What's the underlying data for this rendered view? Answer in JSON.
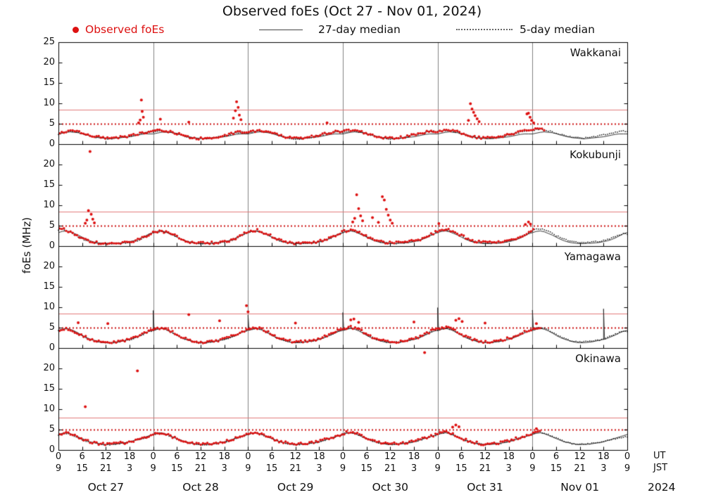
{
  "title": "Observed foEs (Oct 27 - Nov 01, 2024)",
  "legend": {
    "observed": "Observed foEs",
    "median27": "27-day median",
    "median5": "5-day median"
  },
  "y_axis_label": "foEs (MHz)",
  "x_axis": {
    "tick_hours": [
      0,
      6,
      12,
      18,
      24,
      30,
      36,
      42,
      48,
      54,
      60,
      66,
      72,
      78,
      84,
      90,
      96,
      102,
      108,
      114,
      120,
      126,
      132,
      138,
      144
    ],
    "ut_row": [
      "0",
      "6",
      "12",
      "18",
      "0",
      "6",
      "12",
      "18",
      "0",
      "6",
      "12",
      "18",
      "0",
      "6",
      "12",
      "18",
      "0",
      "6",
      "12",
      "18",
      "0",
      "6",
      "12",
      "18",
      "0"
    ],
    "jst_row": [
      "9",
      "15",
      "21",
      "3",
      "9",
      "15",
      "21",
      "3",
      "9",
      "15",
      "21",
      "3",
      "9",
      "15",
      "21",
      "3",
      "9",
      "15",
      "21",
      "3",
      "9",
      "15",
      "21",
      "3",
      "9"
    ],
    "ut_caption": "UT",
    "jst_caption": "JST",
    "dates": [
      "Oct 27",
      "Oct 28",
      "Oct 29",
      "Oct 30",
      "Oct 31",
      "Nov 01"
    ],
    "year": "2024"
  },
  "chart_data": {
    "type": "scatter",
    "x_range_hours": [
      0,
      144
    ],
    "colors": {
      "observed": "#dd1111",
      "median27": "#222222",
      "median5": "#111111",
      "threshold_solid": "#e07b7b",
      "threshold_dotted": "#cc1111",
      "day_grid": "#808080"
    },
    "panels": [
      {
        "station": "Wakkanai",
        "ylim": [
          0,
          25
        ],
        "yticks": [
          0,
          5,
          10,
          15,
          20,
          25
        ],
        "threshold_solid": 8.5,
        "threshold_dotted": 5,
        "observed_end_hour": 123,
        "median27_daily": [
          2.5,
          2.7,
          2.9,
          3.0,
          2.9,
          2.8,
          2.6,
          2.3,
          2.0,
          1.8,
          1.6,
          1.5,
          1.4,
          1.3,
          1.4,
          1.5,
          1.6,
          1.7,
          1.8,
          2.0,
          2.2,
          2.4,
          2.5,
          2.5
        ],
        "median5_hourly": [
          2.5,
          2.7,
          3.0,
          3.2,
          3.1,
          2.9,
          2.6,
          2.3,
          2.0,
          1.8,
          1.6,
          1.5,
          1.4,
          1.3,
          1.4,
          1.5,
          1.6,
          1.7,
          1.9,
          2.1,
          2.3,
          2.6,
          2.8,
          2.9,
          3.0,
          3.2,
          3.3,
          3.1,
          3.0,
          2.8,
          2.5,
          2.2,
          1.9,
          1.7,
          1.5,
          1.4,
          1.3,
          1.3,
          1.4,
          1.5,
          1.7,
          1.8,
          2.0,
          2.2,
          2.5,
          2.7,
          2.9,
          3.0,
          2.8,
          3.0,
          3.2,
          3.3,
          3.1,
          2.9,
          2.7,
          2.4,
          2.1,
          1.8,
          1.6,
          1.4,
          1.3,
          1.3,
          1.4,
          1.6,
          1.7,
          1.9,
          2.1,
          2.3,
          2.6,
          2.8,
          3.0,
          3.1,
          2.9,
          3.1,
          3.3,
          3.2,
          3.0,
          2.8,
          2.6,
          2.3,
          2.0,
          1.7,
          1.5,
          1.4,
          1.3,
          1.4,
          1.5,
          1.6,
          1.8,
          2.0,
          2.2,
          2.4,
          2.6,
          2.9,
          3.1,
          3.2,
          3.0,
          3.2,
          3.4,
          3.3,
          3.1,
          2.9,
          2.6,
          2.3,
          2.0,
          1.8,
          1.6,
          1.5,
          1.4,
          1.4,
          1.5,
          1.7,
          1.8,
          2.0,
          2.2,
          2.5,
          2.7,
          3.0,
          3.2,
          3.3,
          3.4,
          3.6,
          3.7,
          3.5,
          3.3,
          3.0,
          2.7,
          2.4,
          2.1,
          1.9,
          1.7,
          1.6,
          1.5,
          1.5,
          1.6,
          1.7,
          1.9,
          2.1,
          2.3,
          2.5,
          2.7,
          2.9,
          3.1,
          3.2
        ],
        "observed_spikes": [
          [
            20.3,
            5.2
          ],
          [
            20.7,
            5.9
          ],
          [
            21.0,
            10.8
          ],
          [
            21.2,
            8.0
          ],
          [
            21.5,
            6.6
          ],
          [
            25.8,
            6.1
          ],
          [
            33.0,
            5.4
          ],
          [
            44.3,
            6.4
          ],
          [
            44.8,
            8.2
          ],
          [
            45.1,
            10.4
          ],
          [
            45.5,
            9.0
          ],
          [
            45.8,
            7.1
          ],
          [
            46.2,
            6.0
          ],
          [
            68.0,
            5.2
          ],
          [
            103.8,
            5.8
          ],
          [
            104.3,
            9.9
          ],
          [
            104.7,
            8.6
          ],
          [
            105.1,
            7.8
          ],
          [
            105.5,
            7.0
          ],
          [
            106.0,
            6.2
          ],
          [
            106.5,
            5.5
          ],
          [
            118.6,
            7.4
          ],
          [
            119.0,
            7.6
          ],
          [
            119.4,
            6.6
          ],
          [
            119.8,
            5.8
          ],
          [
            120.3,
            5.2
          ]
        ]
      },
      {
        "station": "Kokubunji",
        "ylim": [
          0,
          25
        ],
        "yticks": [
          0,
          5,
          10,
          15,
          20
        ],
        "threshold_solid": 8.5,
        "threshold_dotted": 5,
        "observed_end_hour": 120.5,
        "median27_daily": [
          3.3,
          3.6,
          3.7,
          3.5,
          3.1,
          2.7,
          2.2,
          1.7,
          1.3,
          1.0,
          0.8,
          0.7,
          0.6,
          0.6,
          0.7,
          0.7,
          0.8,
          0.9,
          1.1,
          1.3,
          1.6,
          2.0,
          2.5,
          3.0
        ],
        "median5_hourly": [
          4.0,
          4.2,
          3.8,
          3.3,
          2.8,
          2.3,
          1.8,
          1.3,
          1.0,
          0.8,
          0.7,
          0.6,
          0.6,
          0.6,
          0.6,
          0.7,
          0.7,
          0.8,
          0.9,
          1.1,
          1.4,
          1.8,
          2.3,
          2.8,
          3.2,
          3.5,
          3.6,
          3.4,
          3.1,
          2.7,
          2.2,
          1.7,
          1.3,
          1.0,
          0.8,
          0.7,
          0.6,
          0.6,
          0.6,
          0.7,
          0.8,
          0.9,
          1.0,
          1.2,
          1.5,
          1.9,
          2.4,
          2.9,
          3.3,
          3.6,
          3.8,
          3.6,
          3.2,
          2.8,
          2.3,
          1.8,
          1.4,
          1.1,
          0.9,
          0.7,
          0.6,
          0.6,
          0.7,
          0.7,
          0.8,
          0.9,
          1.1,
          1.3,
          1.6,
          2.0,
          2.5,
          3.0,
          3.4,
          3.7,
          3.9,
          3.7,
          3.3,
          2.9,
          2.4,
          1.9,
          1.5,
          1.2,
          0.9,
          0.8,
          0.7,
          0.7,
          0.7,
          0.8,
          0.9,
          1.0,
          1.2,
          1.4,
          1.7,
          2.1,
          2.6,
          3.1,
          3.5,
          3.8,
          4.0,
          3.8,
          3.4,
          3.0,
          2.5,
          2.0,
          1.5,
          1.2,
          1.0,
          0.8,
          0.7,
          0.7,
          0.8,
          0.8,
          0.9,
          1.1,
          1.3,
          1.5,
          1.8,
          2.2,
          2.7,
          3.2,
          3.8,
          4.1,
          4.2,
          4.0,
          3.6,
          3.1,
          2.6,
          2.1,
          1.7,
          1.4,
          1.1,
          1.0,
          0.9,
          0.9,
          0.9,
          1.0,
          1.1,
          1.2,
          1.4,
          1.6,
          1.9,
          2.3,
          2.7,
          3.0
        ],
        "observed_spikes": [
          [
            6.8,
            5.6
          ],
          [
            7.2,
            6.4
          ],
          [
            7.6,
            8.7
          ],
          [
            8.0,
            23.2
          ],
          [
            8.3,
            7.8
          ],
          [
            8.7,
            6.6
          ],
          [
            9.1,
            5.7
          ],
          [
            74.5,
            5.9
          ],
          [
            75.0,
            6.8
          ],
          [
            75.5,
            12.6
          ],
          [
            76.0,
            9.2
          ],
          [
            76.5,
            7.4
          ],
          [
            77.0,
            6.2
          ],
          [
            79.5,
            7.0
          ],
          [
            81.0,
            5.8
          ],
          [
            82.0,
            12.1
          ],
          [
            82.5,
            11.3
          ],
          [
            83.0,
            9.0
          ],
          [
            83.5,
            7.6
          ],
          [
            84.0,
            6.4
          ],
          [
            84.5,
            5.6
          ],
          [
            96.3,
            5.5
          ],
          [
            118.2,
            5.3
          ],
          [
            119.0,
            5.9
          ],
          [
            119.5,
            5.4
          ]
        ]
      },
      {
        "station": "Yamagawa",
        "ylim": [
          0,
          25
        ],
        "yticks": [
          0,
          5,
          10,
          15,
          20
        ],
        "threshold_solid": 8.5,
        "threshold_dotted": 5,
        "observed_end_hour": 122,
        "median27_daily": [
          4.3,
          4.6,
          4.8,
          4.6,
          4.2,
          3.7,
          3.1,
          2.6,
          2.2,
          1.9,
          1.6,
          1.4,
          1.3,
          1.3,
          1.4,
          1.5,
          1.7,
          1.9,
          2.1,
          2.4,
          2.8,
          3.2,
          3.7,
          4.1
        ],
        "median27_spikes": {
          "x": [
            24,
            48,
            72,
            96,
            120,
            138
          ],
          "y": [
            9.2,
            8.1,
            8.7,
            9.9,
            9.3,
            9.6
          ]
        },
        "median5_hourly": [
          4.2,
          4.5,
          4.6,
          4.4,
          4.0,
          3.5,
          3.0,
          2.5,
          2.1,
          1.8,
          1.6,
          1.4,
          1.3,
          1.3,
          1.4,
          1.5,
          1.6,
          1.8,
          2.0,
          2.3,
          2.7,
          3.1,
          3.6,
          4.0,
          4.3,
          4.6,
          4.8,
          4.6,
          4.2,
          3.7,
          3.1,
          2.6,
          2.2,
          1.9,
          1.6,
          1.4,
          1.3,
          1.3,
          1.4,
          1.5,
          1.7,
          1.9,
          2.1,
          2.4,
          2.8,
          3.2,
          3.7,
          4.1,
          4.4,
          4.7,
          4.9,
          4.7,
          4.3,
          3.8,
          3.2,
          2.7,
          2.2,
          1.9,
          1.7,
          1.5,
          1.4,
          1.4,
          1.5,
          1.6,
          1.7,
          1.9,
          2.2,
          2.5,
          2.9,
          3.3,
          3.8,
          4.2,
          4.5,
          4.8,
          5.0,
          4.8,
          4.4,
          3.9,
          3.3,
          2.8,
          2.3,
          2.0,
          1.7,
          1.5,
          1.4,
          1.4,
          1.5,
          1.6,
          1.8,
          2.0,
          2.2,
          2.5,
          2.9,
          3.4,
          3.9,
          4.3,
          4.4,
          4.7,
          4.9,
          4.7,
          4.3,
          3.8,
          3.3,
          2.7,
          2.3,
          1.9,
          1.7,
          1.5,
          1.4,
          1.4,
          1.5,
          1.6,
          1.8,
          2.0,
          2.3,
          2.6,
          3.0,
          3.4,
          3.9,
          4.3,
          4.6,
          4.9,
          5.0,
          4.8,
          4.4,
          3.9,
          3.4,
          2.8,
          2.4,
          2.0,
          1.8,
          1.6,
          1.5,
          1.5,
          1.6,
          1.7,
          1.8,
          2.0,
          2.3,
          2.6,
          3.0,
          3.4,
          3.8,
          4.1
        ],
        "observed_spikes": [
          [
            5.0,
            6.2
          ],
          [
            12.5,
            6.0
          ],
          [
            33.0,
            8.2
          ],
          [
            40.8,
            6.7
          ],
          [
            47.6,
            10.4
          ],
          [
            48.0,
            8.9
          ],
          [
            60.0,
            6.1
          ],
          [
            74.0,
            6.9
          ],
          [
            74.8,
            7.1
          ],
          [
            76.0,
            6.3
          ],
          [
            90.0,
            6.4
          ],
          [
            100.6,
            6.8
          ],
          [
            101.4,
            7.2
          ],
          [
            102.2,
            6.5
          ],
          [
            108.0,
            6.1
          ],
          [
            121.0,
            6.0
          ]
        ]
      },
      {
        "station": "Okinawa",
        "ylim": [
          0,
          25
        ],
        "yticks": [
          0,
          5,
          10,
          15,
          20
        ],
        "threshold_solid": 8.0,
        "threshold_dotted": 5,
        "observed_end_hour": 122,
        "median27_daily": [
          3.8,
          4.1,
          4.2,
          4.0,
          3.6,
          3.2,
          2.8,
          2.4,
          2.0,
          1.8,
          1.6,
          1.4,
          1.3,
          1.4,
          1.4,
          1.5,
          1.7,
          1.8,
          2.0,
          2.3,
          2.6,
          2.9,
          3.2,
          3.5
        ],
        "median5_hourly": [
          3.6,
          3.9,
          4.0,
          3.8,
          3.4,
          3.0,
          2.6,
          2.2,
          1.9,
          1.7,
          1.5,
          1.4,
          1.3,
          1.3,
          1.4,
          1.5,
          1.6,
          1.7,
          1.9,
          2.1,
          2.4,
          2.7,
          3.0,
          3.3,
          3.7,
          4.0,
          4.1,
          3.9,
          3.5,
          3.1,
          2.7,
          2.3,
          2.0,
          1.7,
          1.5,
          1.4,
          1.3,
          1.3,
          1.4,
          1.5,
          1.6,
          1.8,
          2.0,
          2.2,
          2.5,
          2.8,
          3.1,
          3.4,
          3.8,
          4.1,
          4.2,
          4.0,
          3.6,
          3.2,
          2.8,
          2.4,
          2.0,
          1.8,
          1.6,
          1.4,
          1.3,
          1.4,
          1.4,
          1.5,
          1.7,
          1.8,
          2.0,
          2.3,
          2.6,
          2.9,
          3.2,
          3.5,
          3.9,
          4.2,
          4.3,
          4.1,
          3.7,
          3.3,
          2.8,
          2.4,
          2.1,
          1.8,
          1.6,
          1.5,
          1.4,
          1.4,
          1.5,
          1.6,
          1.7,
          1.9,
          2.1,
          2.3,
          2.6,
          2.9,
          3.2,
          3.5,
          3.8,
          4.1,
          4.3,
          4.1,
          3.7,
          3.2,
          2.8,
          2.4,
          2.0,
          1.8,
          1.6,
          1.4,
          1.3,
          1.4,
          1.5,
          1.6,
          1.7,
          1.9,
          2.1,
          2.4,
          2.7,
          3.0,
          3.3,
          3.6,
          4.0,
          4.3,
          4.4,
          4.2,
          3.8,
          3.3,
          2.9,
          2.5,
          2.1,
          1.8,
          1.6,
          1.5,
          1.4,
          1.4,
          1.5,
          1.6,
          1.7,
          1.9,
          2.1,
          2.3,
          2.5,
          2.8,
          3.0,
          3.2
        ],
        "observed_spikes": [
          [
            6.8,
            10.6
          ],
          [
            20.0,
            19.4
          ],
          [
            92.7,
            23.9
          ],
          [
            99.8,
            5.6
          ],
          [
            100.6,
            6.1
          ],
          [
            101.4,
            5.7
          ],
          [
            121.0,
            5.2
          ]
        ]
      }
    ]
  }
}
